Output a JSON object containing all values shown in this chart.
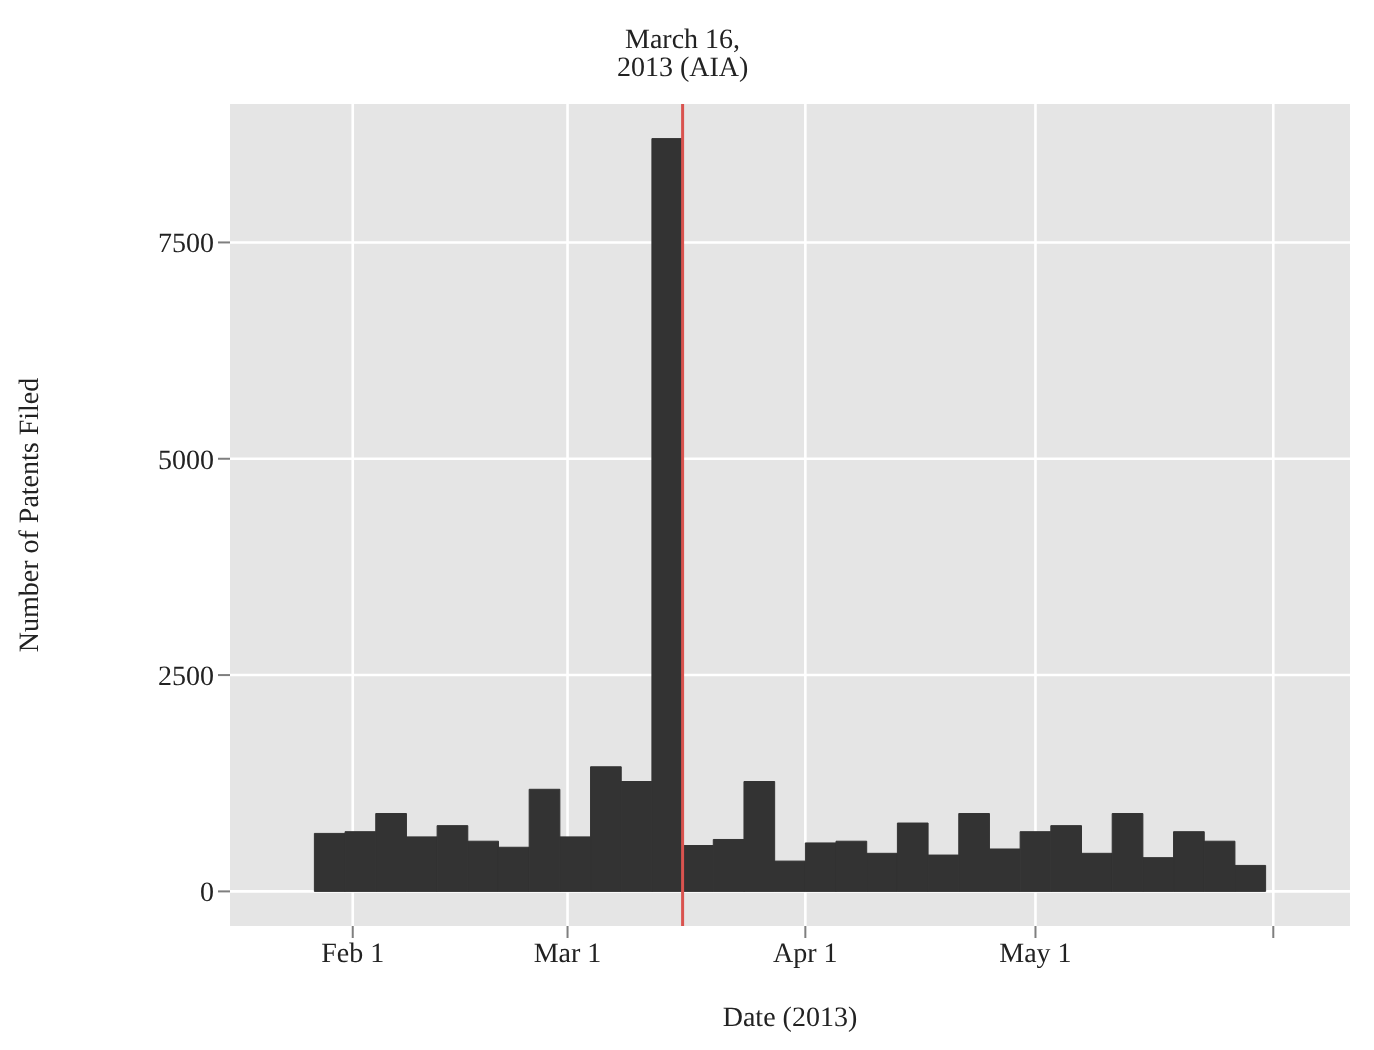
{
  "chart_data": {
    "type": "histogram",
    "xlabel": "Date (2013)",
    "ylabel": "Number of Patents Filed",
    "color": "#333333",
    "bins": [
      "2013-01-27",
      "2013-01-31",
      "2013-02-04",
      "2013-02-08",
      "2013-02-12",
      "2013-02-16",
      "2013-02-20",
      "2013-02-24",
      "2013-02-28",
      "2013-03-04",
      "2013-03-08",
      "2013-03-12",
      "2013-03-16",
      "2013-03-20",
      "2013-03-24",
      "2013-03-28",
      "2013-04-01",
      "2013-04-05",
      "2013-04-09",
      "2013-04-13",
      "2013-04-17",
      "2013-04-21",
      "2013-04-25",
      "2013-04-29",
      "2013-05-03",
      "2013-05-07",
      "2013-05-11",
      "2013-05-15",
      "2013-05-19",
      "2013-05-23",
      "2013-05-27",
      "2013-05-31"
    ],
    "values": [
      670,
      690,
      900,
      630,
      760,
      580,
      510,
      1180,
      630,
      1440,
      1270,
      8700,
      530,
      600,
      1270,
      350,
      560,
      580,
      440,
      790,
      420,
      900,
      490,
      690,
      760,
      440,
      900,
      390,
      690,
      580,
      300
    ],
    "xlim": [
      "2013-01-16",
      "2013-06-11"
    ],
    "xticks": [
      {
        "value": "2013-02-01",
        "label": "Feb 1"
      },
      {
        "value": "2013-03-01",
        "label": "Mar 1"
      },
      {
        "value": "2013-04-01",
        "label": "Apr 1"
      },
      {
        "value": "2013-05-01",
        "label": "May 1"
      },
      {
        "value": "2013-06-01",
        "label": null
      }
    ],
    "ylim": [
      -400,
      9100
    ],
    "yticks": [
      0,
      2500,
      5000,
      7500
    ],
    "grid": true,
    "ref_lines": [
      {
        "axis": "x",
        "value": "2013-03-16",
        "label": "March 16, 2013 (AIA)",
        "color": "#d9534f"
      }
    ]
  }
}
